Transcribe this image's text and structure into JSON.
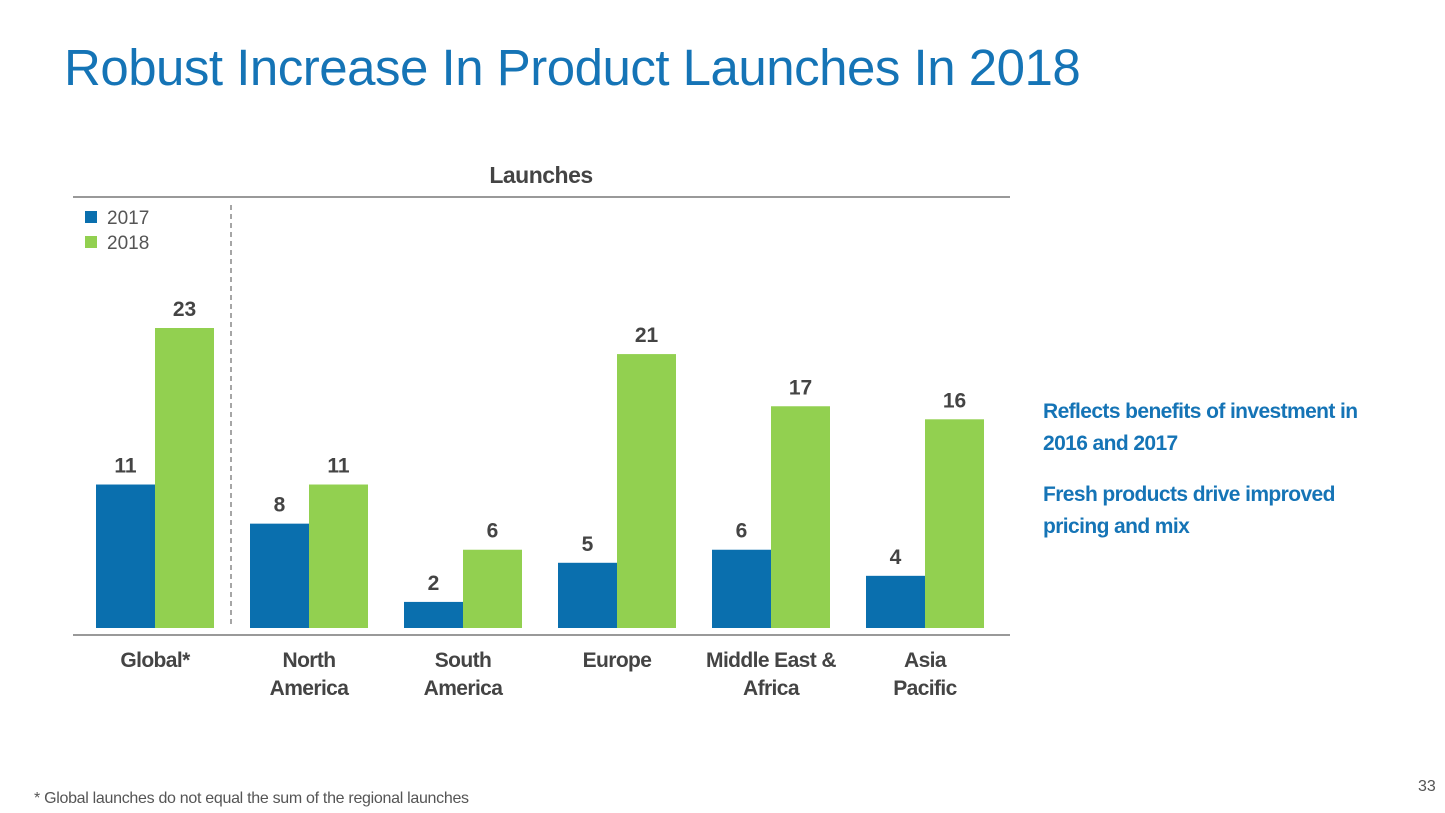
{
  "title": "Robust Increase In Product Launches In 2018",
  "notes": [
    "Reflects benefits of investment in 2016 and 2017",
    "Fresh products drive improved pricing and mix"
  ],
  "footnote": "* Global launches do not equal the sum of the regional launches",
  "page_number": "33",
  "chart_data": {
    "type": "bar",
    "title": "Launches",
    "categories": [
      [
        "Global*"
      ],
      [
        "North",
        "America"
      ],
      [
        "South",
        "America"
      ],
      [
        "Europe"
      ],
      [
        "Middle East &",
        "Africa"
      ],
      [
        "Asia",
        "Pacific"
      ]
    ],
    "series": [
      {
        "name": "2017",
        "color": "#0a6fae",
        "values": [
          11,
          8,
          2,
          5,
          6,
          4
        ]
      },
      {
        "name": "2018",
        "color": "#92d050",
        "values": [
          23,
          11,
          6,
          21,
          17,
          16
        ]
      }
    ],
    "ylim": [
      0,
      23
    ],
    "legend": "top-left",
    "grid": false,
    "separator_after_first_category": true
  }
}
